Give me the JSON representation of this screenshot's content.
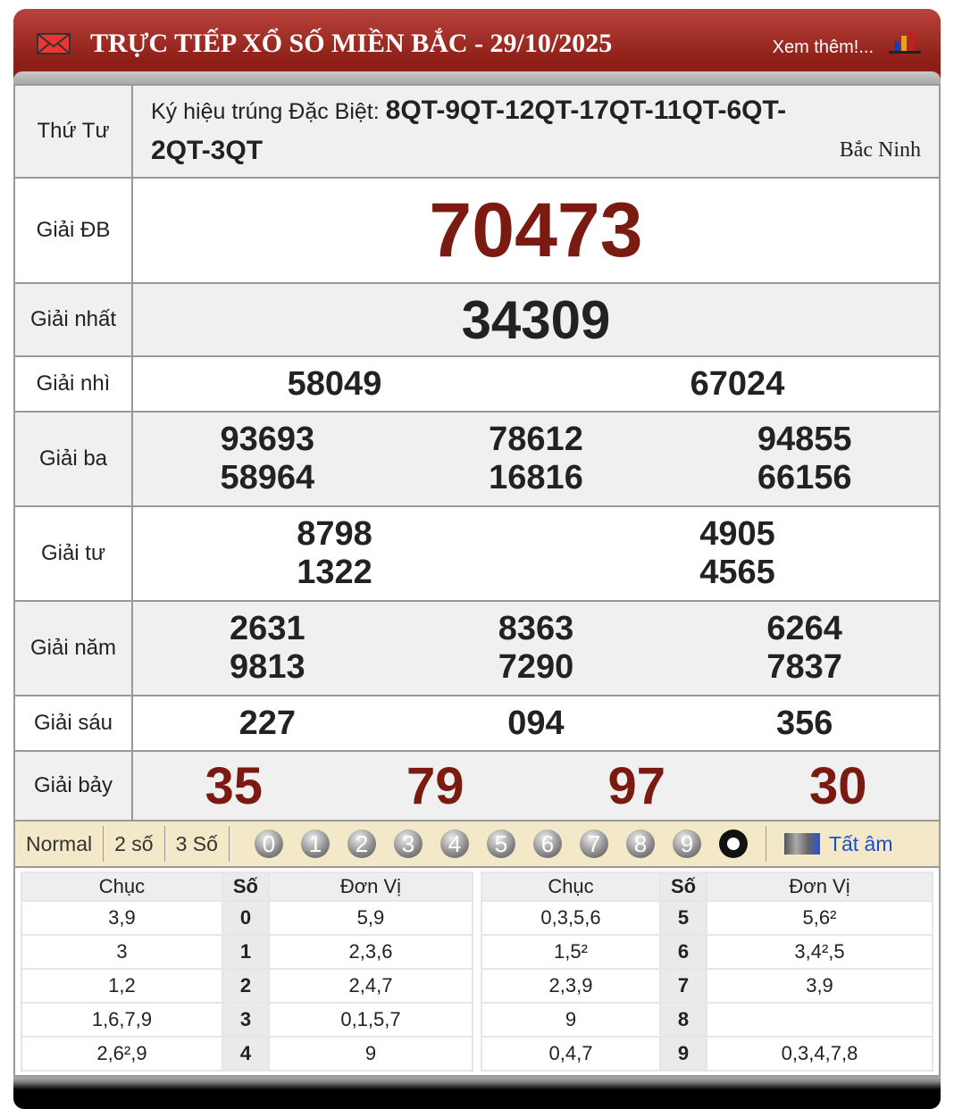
{
  "header": {
    "title": "TRỰC TIẾP XỔ SỐ MIỀN BẮC - 29/10/2025",
    "more": "Xem thêm!..."
  },
  "info": {
    "day": "Thứ Tư",
    "code_label": "Ký hiệu trúng Đặc Biệt:",
    "code": "8QT-9QT-12QT-17QT-11QT-6QT-2QT-3QT",
    "province": "Bắc Ninh"
  },
  "prizes": {
    "db": {
      "label": "Giải ĐB",
      "values": [
        "70473"
      ]
    },
    "nhat": {
      "label": "Giải nhất",
      "values": [
        "34309"
      ]
    },
    "nhi": {
      "label": "Giải nhì",
      "values": [
        "58049",
        "67024"
      ]
    },
    "ba": {
      "label": "Giải ba",
      "values": [
        "93693",
        "78612",
        "94855",
        "58964",
        "16816",
        "66156"
      ]
    },
    "tu": {
      "label": "Giải tư",
      "values": [
        "8798",
        "4905",
        "1322",
        "4565"
      ]
    },
    "nam": {
      "label": "Giải năm",
      "values": [
        "2631",
        "8363",
        "6264",
        "9813",
        "7290",
        "7837"
      ]
    },
    "sau": {
      "label": "Giải sáu",
      "values": [
        "227",
        "094",
        "356"
      ]
    },
    "bay": {
      "label": "Giải bảy",
      "values": [
        "35",
        "79",
        "97",
        "30"
      ]
    }
  },
  "toolbar": {
    "modes": [
      "Normal",
      "2 số",
      "3 Số"
    ],
    "digits": [
      "0",
      "1",
      "2",
      "3",
      "4",
      "5",
      "6",
      "7",
      "8",
      "9"
    ],
    "all": "Tất âm"
  },
  "loto": {
    "headers": [
      "Chục",
      "Số",
      "Đơn Vị"
    ],
    "left": [
      [
        "3,9",
        "0",
        "5,9"
      ],
      [
        "3",
        "1",
        "2,3,6"
      ],
      [
        "1,2",
        "2",
        "2,4,7"
      ],
      [
        "1,6,7,9",
        "3",
        "0,1,5,7"
      ],
      [
        "2,6²,9",
        "4",
        "9"
      ]
    ],
    "right": [
      [
        "0,3,5,6",
        "5",
        "5,6²"
      ],
      [
        "1,5²",
        "6",
        "3,4²,5"
      ],
      [
        "2,3,9",
        "7",
        "3,9"
      ],
      [
        "9",
        "8",
        ""
      ],
      [
        "0,4,7",
        "9",
        "0,3,4,7,8"
      ]
    ]
  },
  "colors": {
    "header": "#8d1f17",
    "special": "#7a1a10",
    "toolbar": "#f3e9c8",
    "link": "#1a4fc9"
  }
}
